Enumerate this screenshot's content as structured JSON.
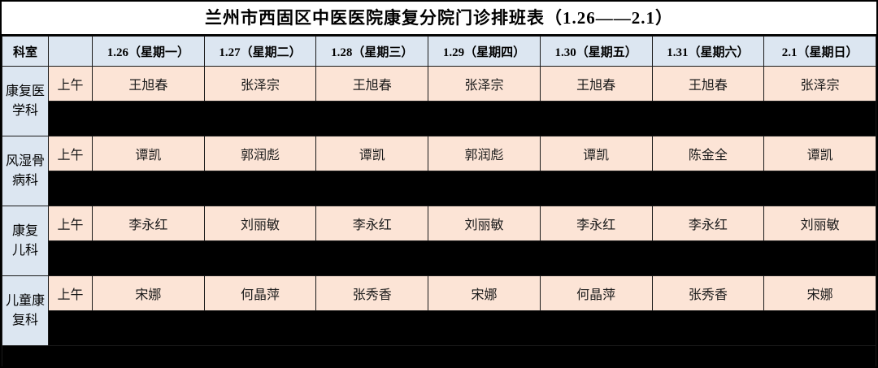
{
  "title": "兰州市西固区中医医院康复分院门诊排班表（1.26——2.1）",
  "colors": {
    "header_bg": "#dce6f1",
    "department_bg": "#dce6f1",
    "cell_bg": "#fce4d6",
    "redacted_bg": "#000000",
    "border": "#1a1a1a"
  },
  "table": {
    "corner_header": "科室",
    "time_column_header": "",
    "date_headers": [
      "1.26（星期一）",
      "1.27（星期二）",
      "1.28（星期三）",
      "1.29（星期四）",
      "1.30（星期五）",
      "1.31（星期六）",
      "2.1（星期日）"
    ],
    "time_label": "上午",
    "sections": [
      {
        "department": "康复医\n学科",
        "department_name": "康复医学科",
        "morning": [
          "王旭春",
          "张泽宗",
          "王旭春",
          "张泽宗",
          "王旭春",
          "王旭春",
          "张泽宗"
        ],
        "afternoon_redacted": true
      },
      {
        "department": "风湿骨\n病科",
        "department_name": "风湿骨病科",
        "morning": [
          "谭凯",
          "郭润彪",
          "谭凯",
          "郭润彪",
          "谭凯",
          "陈金全",
          "谭凯"
        ],
        "afternoon_redacted": true
      },
      {
        "department": "康复\n儿科",
        "department_name": "康复儿科",
        "morning": [
          "李永红",
          "刘丽敏",
          "李永红",
          "刘丽敏",
          "李永红",
          "李永红",
          "刘丽敏"
        ],
        "afternoon_redacted": true
      },
      {
        "department": "儿童康\n复科",
        "department_name": "儿童康复科",
        "morning": [
          "宋娜",
          "何晶萍",
          "张秀香",
          "宋娜",
          "何晶萍",
          "张秀香",
          "宋娜"
        ],
        "afternoon_redacted": true
      }
    ],
    "bottom_redacted_strip": true
  }
}
